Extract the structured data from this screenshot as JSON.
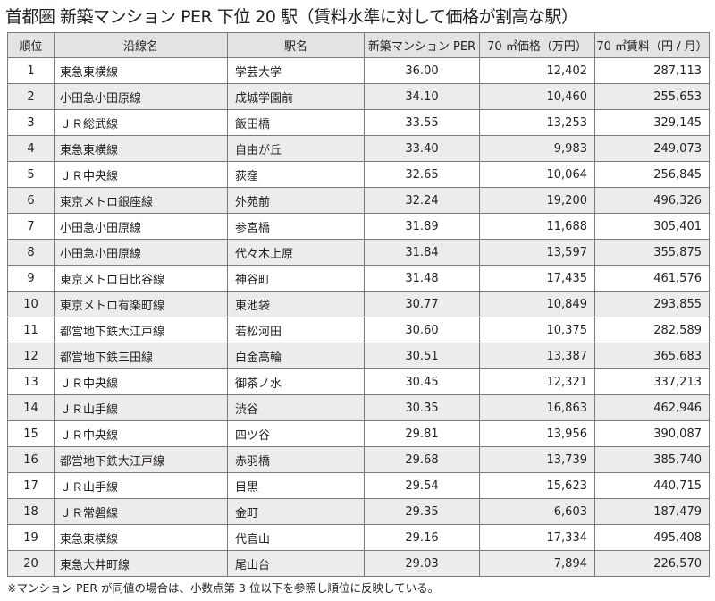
{
  "title": "首都圏 新築マンション PER 下位 20 駅（賃料水準に対して価格が割高な駅）",
  "headers": [
    "順位",
    "沿線名",
    "駅名",
    "新築マンション PER",
    "70 ㎡価格（万円）",
    "70 ㎡賃料（円 / 月）"
  ],
  "rows": [
    [
      "1",
      "東急東横線",
      "学芸大学",
      "36.00",
      "12,402",
      "287,113"
    ],
    [
      "2",
      "小田急小田原線",
      "成城学園前",
      "34.10",
      "10,460",
      "255,653"
    ],
    [
      "3",
      "ＪＲ総武線",
      "飯田橋",
      "33.55",
      "13,253",
      "329,145"
    ],
    [
      "4",
      "東急東横線",
      "自由が丘",
      "33.40",
      "9,983",
      "249,073"
    ],
    [
      "5",
      "ＪＲ中央線",
      "荻窪",
      "32.65",
      "10,064",
      "256,845"
    ],
    [
      "6",
      "東京メトロ銀座線",
      "外苑前",
      "32.24",
      "19,200",
      "496,326"
    ],
    [
      "7",
      "小田急小田原線",
      "参宮橋",
      "31.89",
      "11,688",
      "305,401"
    ],
    [
      "8",
      "小田急小田原線",
      "代々木上原",
      "31.84",
      "13,597",
      "355,875"
    ],
    [
      "9",
      "東京メトロ日比谷線",
      "神谷町",
      "31.48",
      "17,435",
      "461,576"
    ],
    [
      "10",
      "東京メトロ有楽町線",
      "東池袋",
      "30.77",
      "10,849",
      "293,855"
    ],
    [
      "11",
      "都営地下鉄大江戸線",
      "若松河田",
      "30.60",
      "10,375",
      "282,589"
    ],
    [
      "12",
      "都営地下鉄三田線",
      "白金高輪",
      "30.51",
      "13,387",
      "365,683"
    ],
    [
      "13",
      "ＪＲ中央線",
      "御茶ノ水",
      "30.45",
      "12,321",
      "337,213"
    ],
    [
      "14",
      "ＪＲ山手線",
      "渋谷",
      "30.35",
      "16,863",
      "462,946"
    ],
    [
      "15",
      "ＪＲ中央線",
      "四ツ谷",
      "29.81",
      "13,956",
      "390,087"
    ],
    [
      "16",
      "都営地下鉄大江戸線",
      "赤羽橋",
      "29.68",
      "13,739",
      "385,740"
    ],
    [
      "17",
      "ＪＲ山手線",
      "目黒",
      "29.54",
      "15,623",
      "440,715"
    ],
    [
      "18",
      "ＪＲ常磐線",
      "金町",
      "29.35",
      "6,603",
      "187,479"
    ],
    [
      "19",
      "東急東横線",
      "代官山",
      "29.16",
      "17,334",
      "495,408"
    ],
    [
      "20",
      "東急大井町線",
      "尾山台",
      "29.03",
      "7,894",
      "226,570"
    ]
  ],
  "footnote": "※マンション PER が同値の場合は、小数点第 3 位以下を参照し順位に反映している。"
}
